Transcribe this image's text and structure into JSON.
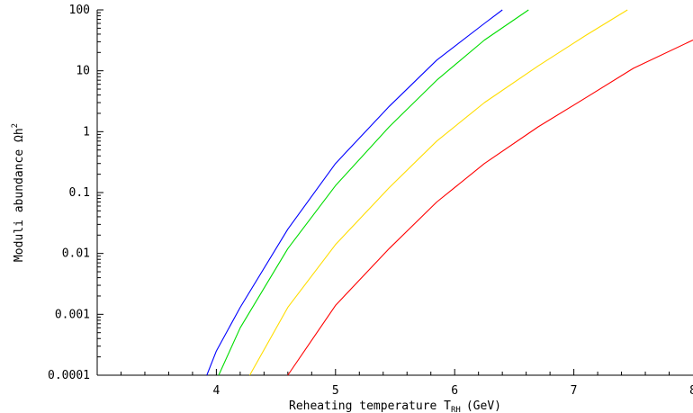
{
  "chart_data": {
    "type": "line",
    "title": "",
    "xlabel": "Reheating temperature T",
    "xlabel_subscript": "RH",
    "xlabel_unit": "(GeV)",
    "ylabel": "Moduli abundance Ωh",
    "ylabel_superscript": "2",
    "xlim": [
      3.0,
      8.0
    ],
    "ylim": [
      0.0001,
      100
    ],
    "yscale": "log",
    "grid": false,
    "legend": "none",
    "x_ticks": [
      {
        "value": 4,
        "label": "4"
      },
      {
        "value": 5,
        "label": "5"
      },
      {
        "value": 6,
        "label": "6"
      },
      {
        "value": 7,
        "label": "7"
      },
      {
        "value": 8,
        "label": "8"
      }
    ],
    "y_ticks": [
      {
        "value": 0.0001,
        "label": "0.0001"
      },
      {
        "value": 0.001,
        "label": "0.001"
      },
      {
        "value": 0.01,
        "label": "0.01"
      },
      {
        "value": 0.1,
        "label": "0.1"
      },
      {
        "value": 1,
        "label": "1"
      },
      {
        "value": 10,
        "label": "10"
      },
      {
        "value": 100,
        "label": "100"
      }
    ],
    "series": [
      {
        "color": "#0000ff",
        "points": [
          [
            3.92,
            0.0001
          ],
          [
            4.0,
            0.00025
          ],
          [
            4.2,
            0.0013
          ],
          [
            4.6,
            0.025
          ],
          [
            5.0,
            0.3
          ],
          [
            5.45,
            2.6
          ],
          [
            5.85,
            15
          ],
          [
            6.25,
            60
          ],
          [
            6.4,
            100
          ]
        ]
      },
      {
        "color": "#00dd00",
        "points": [
          [
            4.02,
            0.0001
          ],
          [
            4.2,
            0.0006
          ],
          [
            4.6,
            0.012
          ],
          [
            5.0,
            0.13
          ],
          [
            5.45,
            1.2
          ],
          [
            5.85,
            7
          ],
          [
            6.25,
            32
          ],
          [
            6.62,
            100
          ]
        ]
      },
      {
        "color": "#ffdd00",
        "points": [
          [
            4.28,
            0.0001
          ],
          [
            4.6,
            0.0013
          ],
          [
            5.0,
            0.014
          ],
          [
            5.45,
            0.12
          ],
          [
            5.85,
            0.7
          ],
          [
            6.25,
            3.0
          ],
          [
            6.7,
            12
          ],
          [
            7.1,
            38
          ],
          [
            7.45,
            100
          ]
        ]
      },
      {
        "color": "#ff0000",
        "points": [
          [
            4.6,
            0.0001
          ],
          [
            5.0,
            0.0014
          ],
          [
            5.45,
            0.012
          ],
          [
            5.85,
            0.07
          ],
          [
            6.25,
            0.3
          ],
          [
            6.7,
            1.2
          ],
          [
            7.1,
            3.6
          ],
          [
            7.5,
            11
          ],
          [
            8.0,
            32
          ]
        ]
      }
    ]
  }
}
